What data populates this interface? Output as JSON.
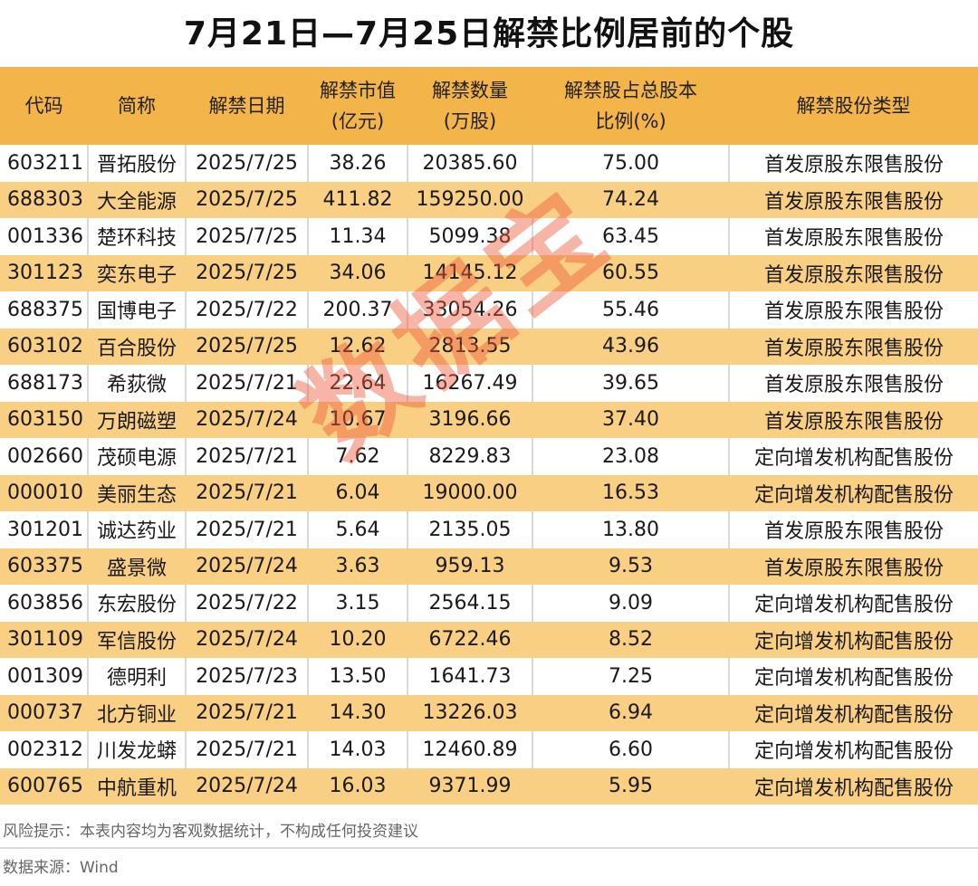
{
  "title": "7月21日—7月25日解禁比例居前的个股",
  "table": {
    "headers": [
      {
        "line1": "代码",
        "line2": ""
      },
      {
        "line1": "简称",
        "line2": ""
      },
      {
        "line1": "解禁日期",
        "line2": ""
      },
      {
        "line1": "解禁市值",
        "line2": "(亿元)"
      },
      {
        "line1": "解禁数量",
        "line2": "(万股)"
      },
      {
        "line1": "解禁股占总股本",
        "line2": "比例(%)"
      },
      {
        "line1": "解禁股份类型",
        "line2": ""
      }
    ],
    "rows": [
      {
        "code": "603211",
        "name": "晋拓股份",
        "date": "2025/7/25",
        "value": "38.26",
        "shares": "20385.60",
        "ratio": "75.00",
        "type": "首发原股东限售股份"
      },
      {
        "code": "688303",
        "name": "大全能源",
        "date": "2025/7/25",
        "value": "411.82",
        "shares": "159250.00",
        "ratio": "74.24",
        "type": "首发原股东限售股份"
      },
      {
        "code": "001336",
        "name": "楚环科技",
        "date": "2025/7/25",
        "value": "11.34",
        "shares": "5099.38",
        "ratio": "63.45",
        "type": "首发原股东限售股份"
      },
      {
        "code": "301123",
        "name": "奕东电子",
        "date": "2025/7/25",
        "value": "34.06",
        "shares": "14145.12",
        "ratio": "60.55",
        "type": "首发原股东限售股份"
      },
      {
        "code": "688375",
        "name": "国博电子",
        "date": "2025/7/22",
        "value": "200.37",
        "shares": "33054.26",
        "ratio": "55.46",
        "type": "首发原股东限售股份"
      },
      {
        "code": "603102",
        "name": "百合股份",
        "date": "2025/7/25",
        "value": "12.62",
        "shares": "2813.55",
        "ratio": "43.96",
        "type": "首发原股东限售股份"
      },
      {
        "code": "688173",
        "name": "希荻微",
        "date": "2025/7/21",
        "value": "22.64",
        "shares": "16267.49",
        "ratio": "39.65",
        "type": "首发原股东限售股份"
      },
      {
        "code": "603150",
        "name": "万朗磁塑",
        "date": "2025/7/24",
        "value": "10.67",
        "shares": "3196.66",
        "ratio": "37.40",
        "type": "首发原股东限售股份"
      },
      {
        "code": "002660",
        "name": "茂硕电源",
        "date": "2025/7/21",
        "value": "7.62",
        "shares": "8229.83",
        "ratio": "23.08",
        "type": "定向增发机构配售股份"
      },
      {
        "code": "000010",
        "name": "美丽生态",
        "date": "2025/7/21",
        "value": "6.04",
        "shares": "19000.00",
        "ratio": "16.53",
        "type": "定向增发机构配售股份"
      },
      {
        "code": "301201",
        "name": "诚达药业",
        "date": "2025/7/21",
        "value": "5.64",
        "shares": "2135.05",
        "ratio": "13.80",
        "type": "首发原股东限售股份"
      },
      {
        "code": "603375",
        "name": "盛景微",
        "date": "2025/7/24",
        "value": "3.63",
        "shares": "959.13",
        "ratio": "9.53",
        "type": "首发原股东限售股份"
      },
      {
        "code": "603856",
        "name": "东宏股份",
        "date": "2025/7/22",
        "value": "3.15",
        "shares": "2564.15",
        "ratio": "9.09",
        "type": "定向增发机构配售股份"
      },
      {
        "code": "301109",
        "name": "军信股份",
        "date": "2025/7/24",
        "value": "10.20",
        "shares": "6722.46",
        "ratio": "8.52",
        "type": "定向增发机构配售股份"
      },
      {
        "code": "001309",
        "name": "德明利",
        "date": "2025/7/23",
        "value": "13.50",
        "shares": "1641.73",
        "ratio": "7.25",
        "type": "定向增发机构配售股份"
      },
      {
        "code": "000737",
        "name": "北方铜业",
        "date": "2025/7/21",
        "value": "14.30",
        "shares": "13226.03",
        "ratio": "6.94",
        "type": "定向增发机构配售股份"
      },
      {
        "code": "002312",
        "name": "川发龙蟒",
        "date": "2025/7/21",
        "value": "14.03",
        "shares": "12460.89",
        "ratio": "6.60",
        "type": "定向增发机构配售股份"
      },
      {
        "code": "600765",
        "name": "中航重机",
        "date": "2025/7/24",
        "value": "16.03",
        "shares": "9371.99",
        "ratio": "5.95",
        "type": "定向增发机构配售股份"
      }
    ]
  },
  "watermark": "数据宝",
  "footer": {
    "risk_note": "风险提示：本表内容均为客观数据统计，不构成任何投资建议",
    "source": "数据来源：Wind"
  },
  "colors": {
    "header_bg": "#f3b44a",
    "stripe_bg": "#f9cf84",
    "watermark": "#ee5a3c"
  }
}
